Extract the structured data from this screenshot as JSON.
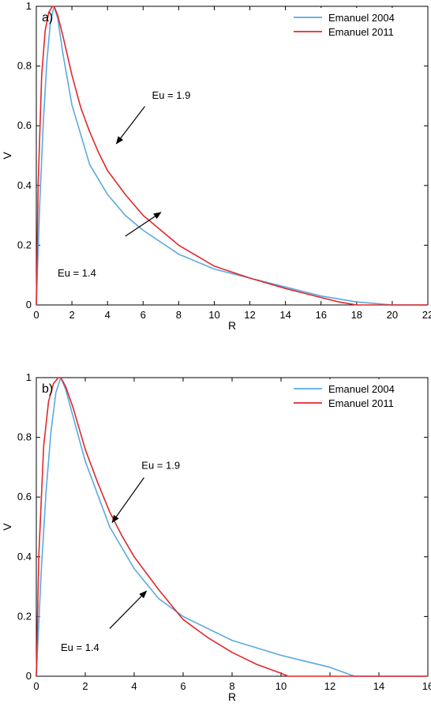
{
  "chart_data": [
    {
      "type": "line",
      "panel_label": "a)",
      "xlabel": "R",
      "ylabel": "V",
      "xlim": [
        0,
        22
      ],
      "ylim": [
        0,
        1
      ],
      "xticks": [
        0,
        2,
        4,
        6,
        8,
        10,
        12,
        14,
        16,
        18,
        20,
        22
      ],
      "yticks": [
        0,
        0.2,
        0.4,
        0.6,
        0.8,
        1
      ],
      "legend_position": "top-right",
      "series": [
        {
          "name": "Emanuel 2004",
          "color": "#5aa9e0",
          "x": [
            0,
            0.2,
            0.4,
            0.6,
            0.8,
            1.0,
            1.2,
            1.5,
            2,
            3,
            4,
            5,
            6,
            8,
            10,
            12,
            14,
            16,
            18,
            19,
            20,
            22
          ],
          "y": [
            0,
            0.35,
            0.62,
            0.82,
            0.95,
            1.0,
            0.96,
            0.84,
            0.67,
            0.47,
            0.37,
            0.3,
            0.25,
            0.17,
            0.12,
            0.09,
            0.06,
            0.03,
            0.01,
            0.005,
            0,
            0
          ]
        },
        {
          "name": "Emanuel 2011",
          "color": "#e0282e",
          "x": [
            0,
            0.1,
            0.3,
            0.5,
            0.7,
            0.9,
            1.0,
            1.2,
            1.5,
            2,
            2.5,
            3,
            3.5,
            4,
            5,
            6,
            8,
            10,
            12,
            14,
            16,
            17,
            18,
            22
          ],
          "y": [
            0,
            0.4,
            0.77,
            0.92,
            0.98,
            1.0,
            1.0,
            0.97,
            0.9,
            0.77,
            0.66,
            0.58,
            0.51,
            0.45,
            0.37,
            0.3,
            0.2,
            0.13,
            0.09,
            0.055,
            0.025,
            0.01,
            0,
            0
          ]
        }
      ],
      "annotations": [
        {
          "text": "Eu = 1.9",
          "text_x": 6.5,
          "text_y": 0.69,
          "arrow_from": [
            6.1,
            0.665
          ],
          "arrow_to": [
            4.5,
            0.54
          ]
        },
        {
          "text": "Eu = 1.4",
          "text_x": 1.2,
          "text_y": 0.095,
          "arrow_from": [
            5.0,
            0.23
          ],
          "arrow_to": [
            7.0,
            0.31
          ]
        }
      ]
    },
    {
      "type": "line",
      "panel_label": "b)",
      "xlabel": "R",
      "ylabel": "V",
      "xlim": [
        0,
        16
      ],
      "ylim": [
        0,
        1
      ],
      "xticks": [
        0,
        2,
        4,
        6,
        8,
        10,
        12,
        14,
        16
      ],
      "yticks": [
        0,
        0.2,
        0.4,
        0.6,
        0.8,
        1
      ],
      "legend_position": "top-right",
      "series": [
        {
          "name": "Emanuel 2004",
          "color": "#5aa9e0",
          "x": [
            0,
            0.2,
            0.4,
            0.6,
            0.8,
            1.0,
            1.2,
            1.5,
            2,
            3,
            4,
            5,
            6,
            8,
            10,
            12,
            13,
            16
          ],
          "y": [
            0,
            0.35,
            0.62,
            0.82,
            0.95,
            1.0,
            0.96,
            0.87,
            0.72,
            0.5,
            0.36,
            0.26,
            0.2,
            0.12,
            0.07,
            0.03,
            0,
            0
          ]
        },
        {
          "name": "Emanuel 2011",
          "color": "#e0282e",
          "x": [
            0,
            0.1,
            0.3,
            0.5,
            0.7,
            0.9,
            1.0,
            1.2,
            1.5,
            2,
            2.5,
            3,
            3.5,
            4,
            5,
            6,
            7,
            8,
            9,
            10,
            10.3,
            16
          ],
          "y": [
            0,
            0.4,
            0.77,
            0.92,
            0.98,
            1.0,
            1.0,
            0.97,
            0.9,
            0.76,
            0.65,
            0.55,
            0.47,
            0.4,
            0.29,
            0.19,
            0.13,
            0.08,
            0.04,
            0.01,
            0,
            0
          ]
        }
      ],
      "annotations": [
        {
          "text": "Eu = 1.9",
          "text_x": 4.3,
          "text_y": 0.695,
          "arrow_from": [
            4.4,
            0.665
          ],
          "arrow_to": [
            3.1,
            0.515
          ]
        },
        {
          "text": "Eu = 1.4",
          "text_x": 1.0,
          "text_y": 0.085,
          "arrow_from": [
            3.0,
            0.16
          ],
          "arrow_to": [
            4.5,
            0.285
          ]
        }
      ]
    }
  ]
}
